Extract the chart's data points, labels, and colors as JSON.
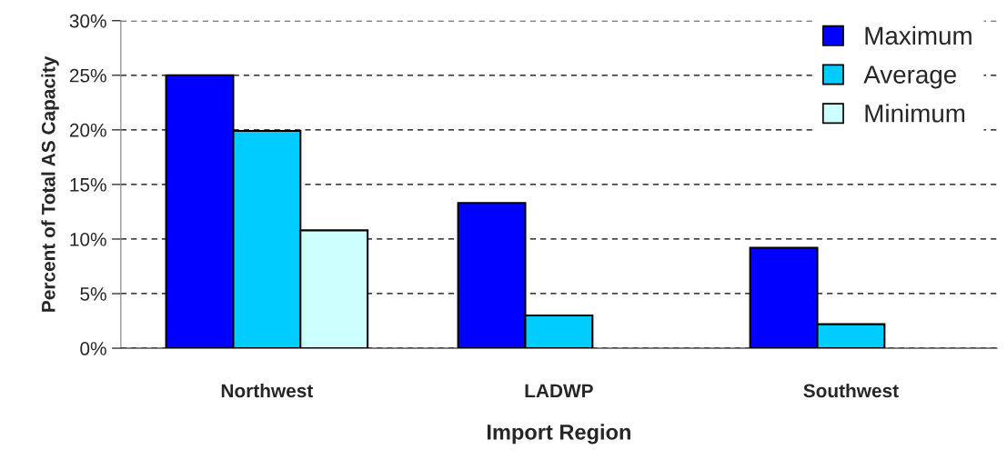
{
  "chart_data": {
    "type": "bar",
    "xlabel": "Import Region",
    "ylabel": "Percent of Total AS Capacity",
    "categories": [
      "Northwest",
      "LADWP",
      "Southwest"
    ],
    "series": [
      {
        "name": "Maximum",
        "color": "#0000ff",
        "values": [
          25,
          13.3,
          9.2
        ]
      },
      {
        "name": "Average",
        "color": "#00ccff",
        "values": [
          19.9,
          3.0,
          2.2
        ]
      },
      {
        "name": "Minimum",
        "color": "#ccffff",
        "values": [
          10.8,
          null,
          null
        ]
      }
    ],
    "ylim": [
      0,
      30
    ],
    "yticks": [
      {
        "value": 0,
        "label": "0%"
      },
      {
        "value": 5,
        "label": "5%"
      },
      {
        "value": 10,
        "label": "10%"
      },
      {
        "value": 15,
        "label": "15%"
      },
      {
        "value": 20,
        "label": "20%"
      },
      {
        "value": 25,
        "label": "25%"
      },
      {
        "value": 30,
        "label": "30%"
      }
    ],
    "grid": "y",
    "legend": "top right"
  }
}
